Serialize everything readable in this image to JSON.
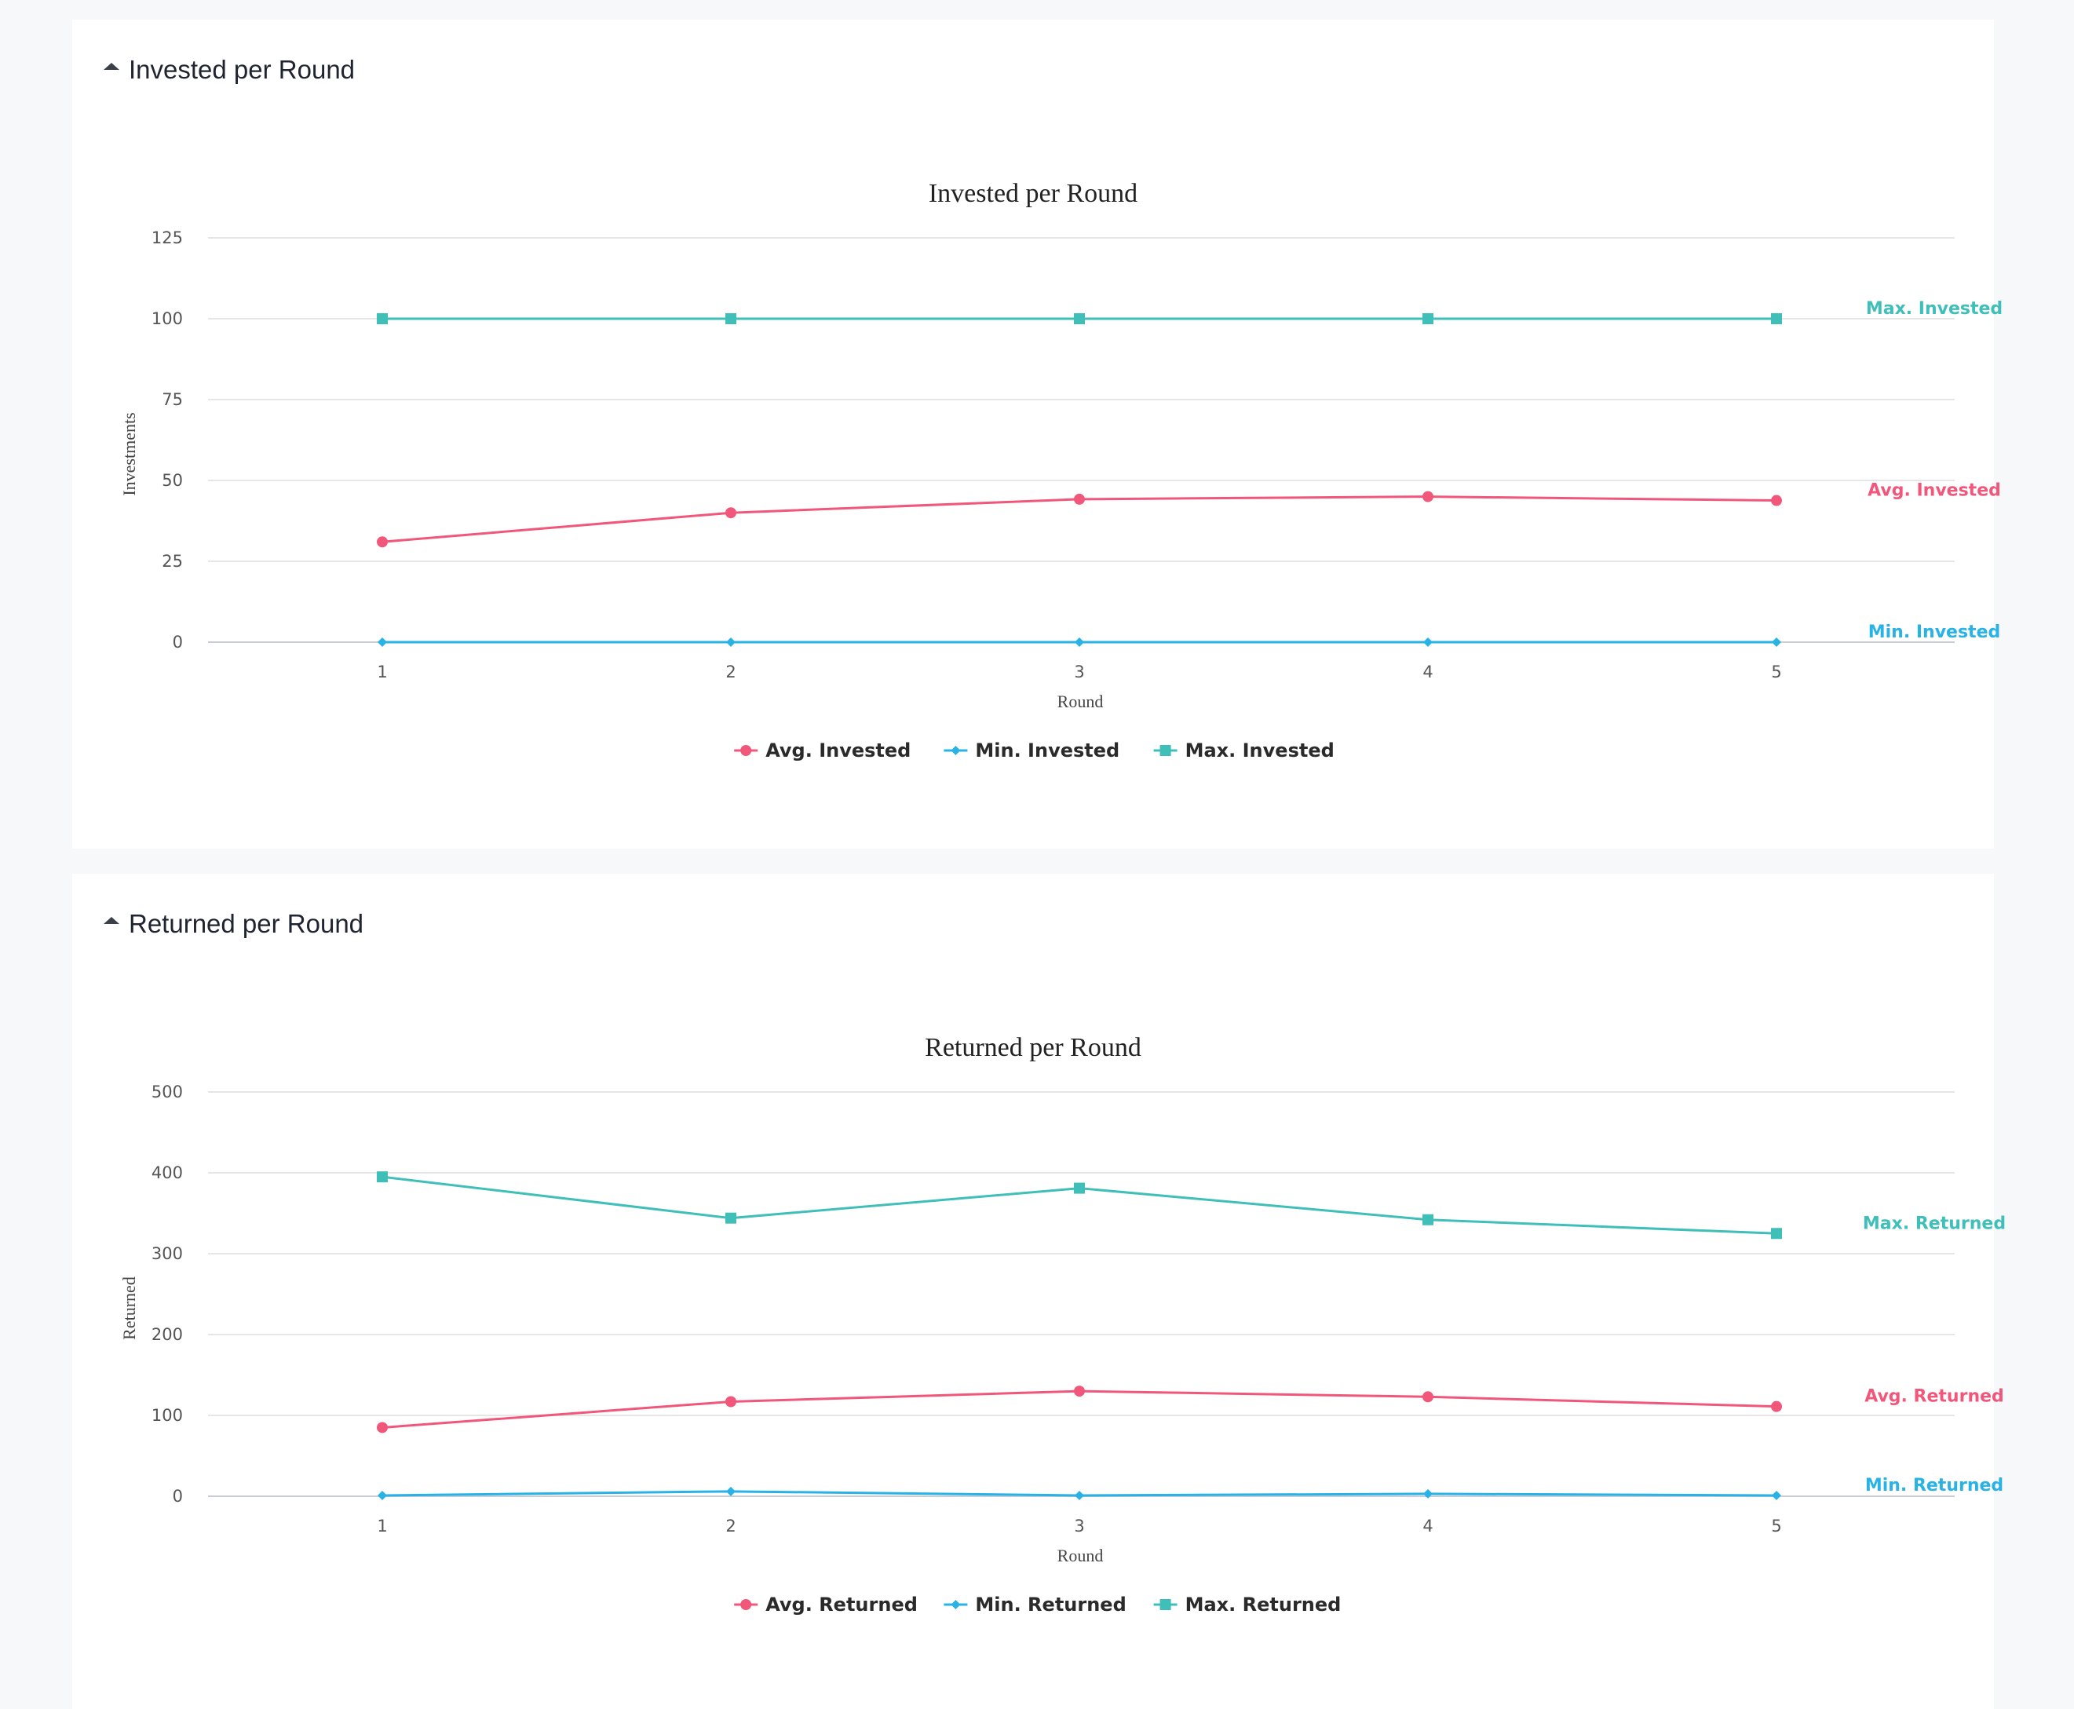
{
  "panels": {
    "invested": {
      "header": "Invested per Round"
    },
    "returned": {
      "header": "Returned per Round"
    }
  },
  "colors": {
    "avg": "#f0577a",
    "min": "#29b2e6",
    "max": "#3fbfb8"
  },
  "chart_data": [
    {
      "type": "line",
      "title": "Invested per Round",
      "xlabel": "Round",
      "ylabel": "Investments",
      "categories": [
        "1",
        "2",
        "3",
        "4",
        "5"
      ],
      "ylim": [
        0,
        125
      ],
      "yticks": [
        0,
        25,
        50,
        75,
        100,
        125
      ],
      "grid": true,
      "legend_position": "bottom-center",
      "series": [
        {
          "name": "Avg. Invested",
          "marker": "circle",
          "color": "#f0577a",
          "values": [
            31,
            40,
            44.2,
            45,
            43.8
          ]
        },
        {
          "name": "Min. Invested",
          "marker": "diamond",
          "color": "#29b2e6",
          "values": [
            0,
            0,
            0,
            0,
            0
          ]
        },
        {
          "name": "Max. Invested",
          "marker": "square",
          "color": "#3fbfb8",
          "values": [
            100,
            100,
            100,
            100,
            100
          ]
        }
      ]
    },
    {
      "type": "line",
      "title": "Returned per Round",
      "xlabel": "Round",
      "ylabel": "Returned",
      "categories": [
        "1",
        "2",
        "3",
        "4",
        "5"
      ],
      "ylim": [
        0,
        500
      ],
      "yticks": [
        0,
        100,
        200,
        300,
        400,
        500
      ],
      "grid": true,
      "legend_position": "bottom-center",
      "series": [
        {
          "name": "Avg. Returned",
          "marker": "circle",
          "color": "#f0577a",
          "values": [
            85,
            117,
            130,
            123,
            111
          ]
        },
        {
          "name": "Min. Returned",
          "marker": "diamond",
          "color": "#29b2e6",
          "values": [
            1,
            6,
            1,
            3,
            1
          ]
        },
        {
          "name": "Max. Returned",
          "marker": "square",
          "color": "#3fbfb8",
          "values": [
            395,
            344,
            381,
            342,
            325
          ]
        }
      ]
    }
  ]
}
